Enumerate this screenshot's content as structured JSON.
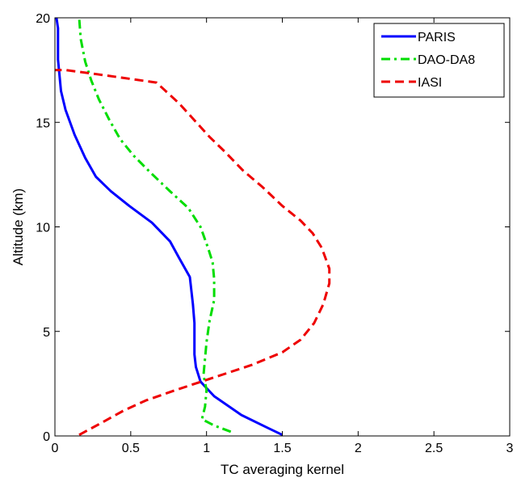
{
  "chart_data": {
    "type": "line",
    "title": "",
    "xlabel": "TC averaging kernel",
    "ylabel": "Altitude (km)",
    "xlim": [
      0,
      3
    ],
    "ylim": [
      0,
      20
    ],
    "xticks": [
      {
        "value": 0,
        "label": "0"
      },
      {
        "value": 0.5,
        "label": "0.5"
      },
      {
        "value": 1,
        "label": "1"
      },
      {
        "value": 1.5,
        "label": "1.5"
      },
      {
        "value": 2,
        "label": "2"
      },
      {
        "value": 2.5,
        "label": "2.5"
      },
      {
        "value": 3,
        "label": "3"
      }
    ],
    "yticks": [
      {
        "value": 0,
        "label": "0"
      },
      {
        "value": 5,
        "label": "5"
      },
      {
        "value": 10,
        "label": "10"
      },
      {
        "value": 15,
        "label": "15"
      },
      {
        "value": 20,
        "label": "20"
      }
    ],
    "grid": false,
    "legend_position": "top-right",
    "series": [
      {
        "name": "PARIS",
        "color": "#0000ff",
        "style": "solid",
        "points": [
          [
            1.5,
            0.05
          ],
          [
            1.4,
            0.4
          ],
          [
            1.23,
            1.0
          ],
          [
            1.05,
            1.9
          ],
          [
            0.96,
            2.6
          ],
          [
            0.93,
            3.3
          ],
          [
            0.92,
            3.9
          ],
          [
            0.92,
            4.6
          ],
          [
            0.92,
            5.4
          ],
          [
            0.91,
            6.3
          ],
          [
            0.89,
            7.6
          ],
          [
            0.82,
            8.5
          ],
          [
            0.76,
            9.3
          ],
          [
            0.64,
            10.2
          ],
          [
            0.49,
            11.0
          ],
          [
            0.37,
            11.7
          ],
          [
            0.27,
            12.4
          ],
          [
            0.2,
            13.3
          ],
          [
            0.13,
            14.4
          ],
          [
            0.07,
            15.6
          ],
          [
            0.04,
            16.5
          ],
          [
            0.02,
            18.0
          ],
          [
            0.02,
            19.5
          ],
          [
            0.01,
            20.0
          ]
        ]
      },
      {
        "name": "DAO-DA8",
        "color": "#00dd00",
        "style": "dashdot",
        "points": [
          [
            1.16,
            0.2
          ],
          [
            1.05,
            0.5
          ],
          [
            0.97,
            0.8
          ],
          [
            0.99,
            1.4
          ],
          [
            1.0,
            2.2
          ],
          [
            0.98,
            2.9
          ],
          [
            0.99,
            3.7
          ],
          [
            1.0,
            4.5
          ],
          [
            1.02,
            5.5
          ],
          [
            1.05,
            6.5
          ],
          [
            1.05,
            7.5
          ],
          [
            1.04,
            8.3
          ],
          [
            1.01,
            9.0
          ],
          [
            0.96,
            10.0
          ],
          [
            0.88,
            10.9
          ],
          [
            0.76,
            11.7
          ],
          [
            0.63,
            12.6
          ],
          [
            0.52,
            13.4
          ],
          [
            0.43,
            14.2
          ],
          [
            0.36,
            15.1
          ],
          [
            0.29,
            16.1
          ],
          [
            0.24,
            17.0
          ],
          [
            0.2,
            17.9
          ],
          [
            0.17,
            19.0
          ],
          [
            0.16,
            20.0
          ]
        ]
      },
      {
        "name": "IASI",
        "color": "#ee0000",
        "style": "dashed",
        "points": [
          [
            0.16,
            0.05
          ],
          [
            0.3,
            0.6
          ],
          [
            0.45,
            1.2
          ],
          [
            0.6,
            1.7
          ],
          [
            0.8,
            2.2
          ],
          [
            1.05,
            2.8
          ],
          [
            1.3,
            3.4
          ],
          [
            1.5,
            4.0
          ],
          [
            1.62,
            4.6
          ],
          [
            1.71,
            5.4
          ],
          [
            1.77,
            6.3
          ],
          [
            1.81,
            7.3
          ],
          [
            1.81,
            8.0
          ],
          [
            1.76,
            9.0
          ],
          [
            1.7,
            9.7
          ],
          [
            1.62,
            10.3
          ],
          [
            1.5,
            11.0
          ],
          [
            1.37,
            11.9
          ],
          [
            1.24,
            12.7
          ],
          [
            1.12,
            13.6
          ],
          [
            1.02,
            14.3
          ],
          [
            0.92,
            15.1
          ],
          [
            0.82,
            15.9
          ],
          [
            0.67,
            16.9
          ],
          [
            0.28,
            17.3
          ],
          [
            0.07,
            17.5
          ],
          [
            0.0,
            17.5
          ]
        ]
      }
    ]
  }
}
